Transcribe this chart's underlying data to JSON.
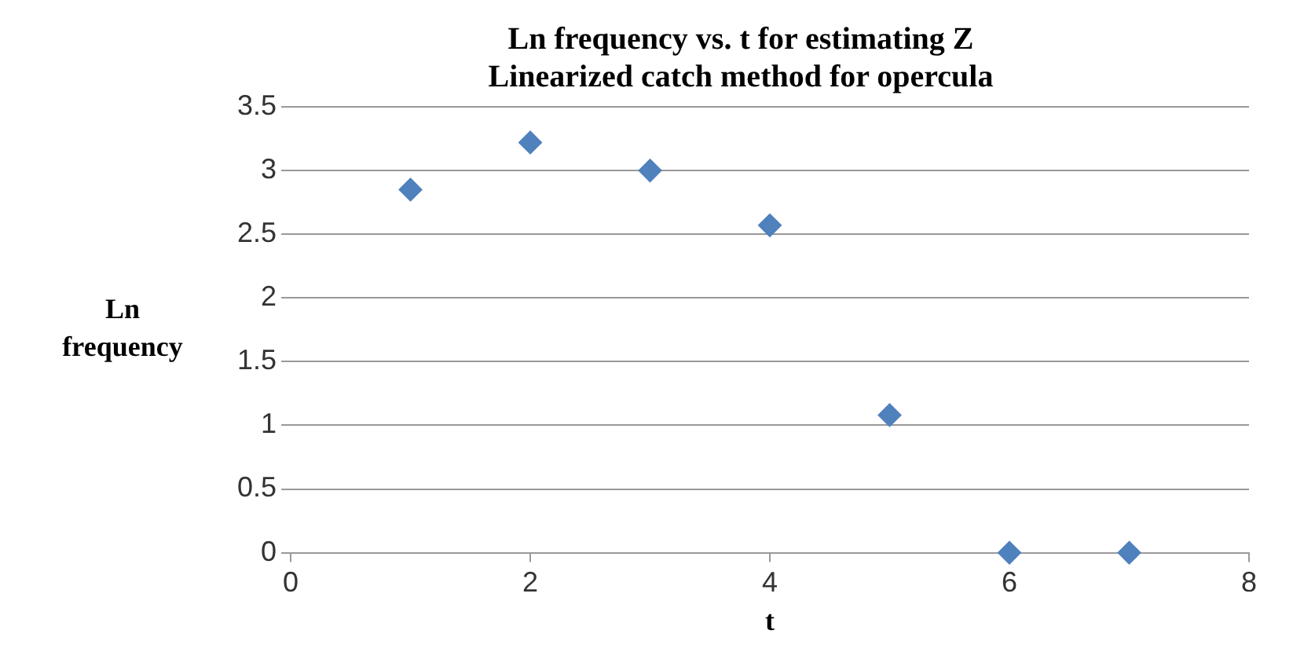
{
  "chart_data": {
    "type": "scatter",
    "title": "Ln frequency vs. t for estimating Z",
    "subtitle": "Linearized catch method for opercula",
    "xlabel": "t",
    "ylabel": "Ln frequency",
    "x": [
      1,
      2,
      3,
      4,
      5,
      6,
      7
    ],
    "series": [
      {
        "color": "#4f81bd",
        "values": [
          2.85,
          3.22,
          3.0,
          2.57,
          1.08,
          0,
          0
        ]
      }
    ],
    "xlim": [
      0,
      8
    ],
    "xticks": [
      0,
      2,
      4,
      6,
      8
    ],
    "ylim": [
      0,
      3.5
    ],
    "yticks": [
      0,
      0.5,
      1,
      1.5,
      2,
      2.5,
      3,
      3.5
    ],
    "grid": "y",
    "legend": false,
    "marker": "diamond"
  }
}
